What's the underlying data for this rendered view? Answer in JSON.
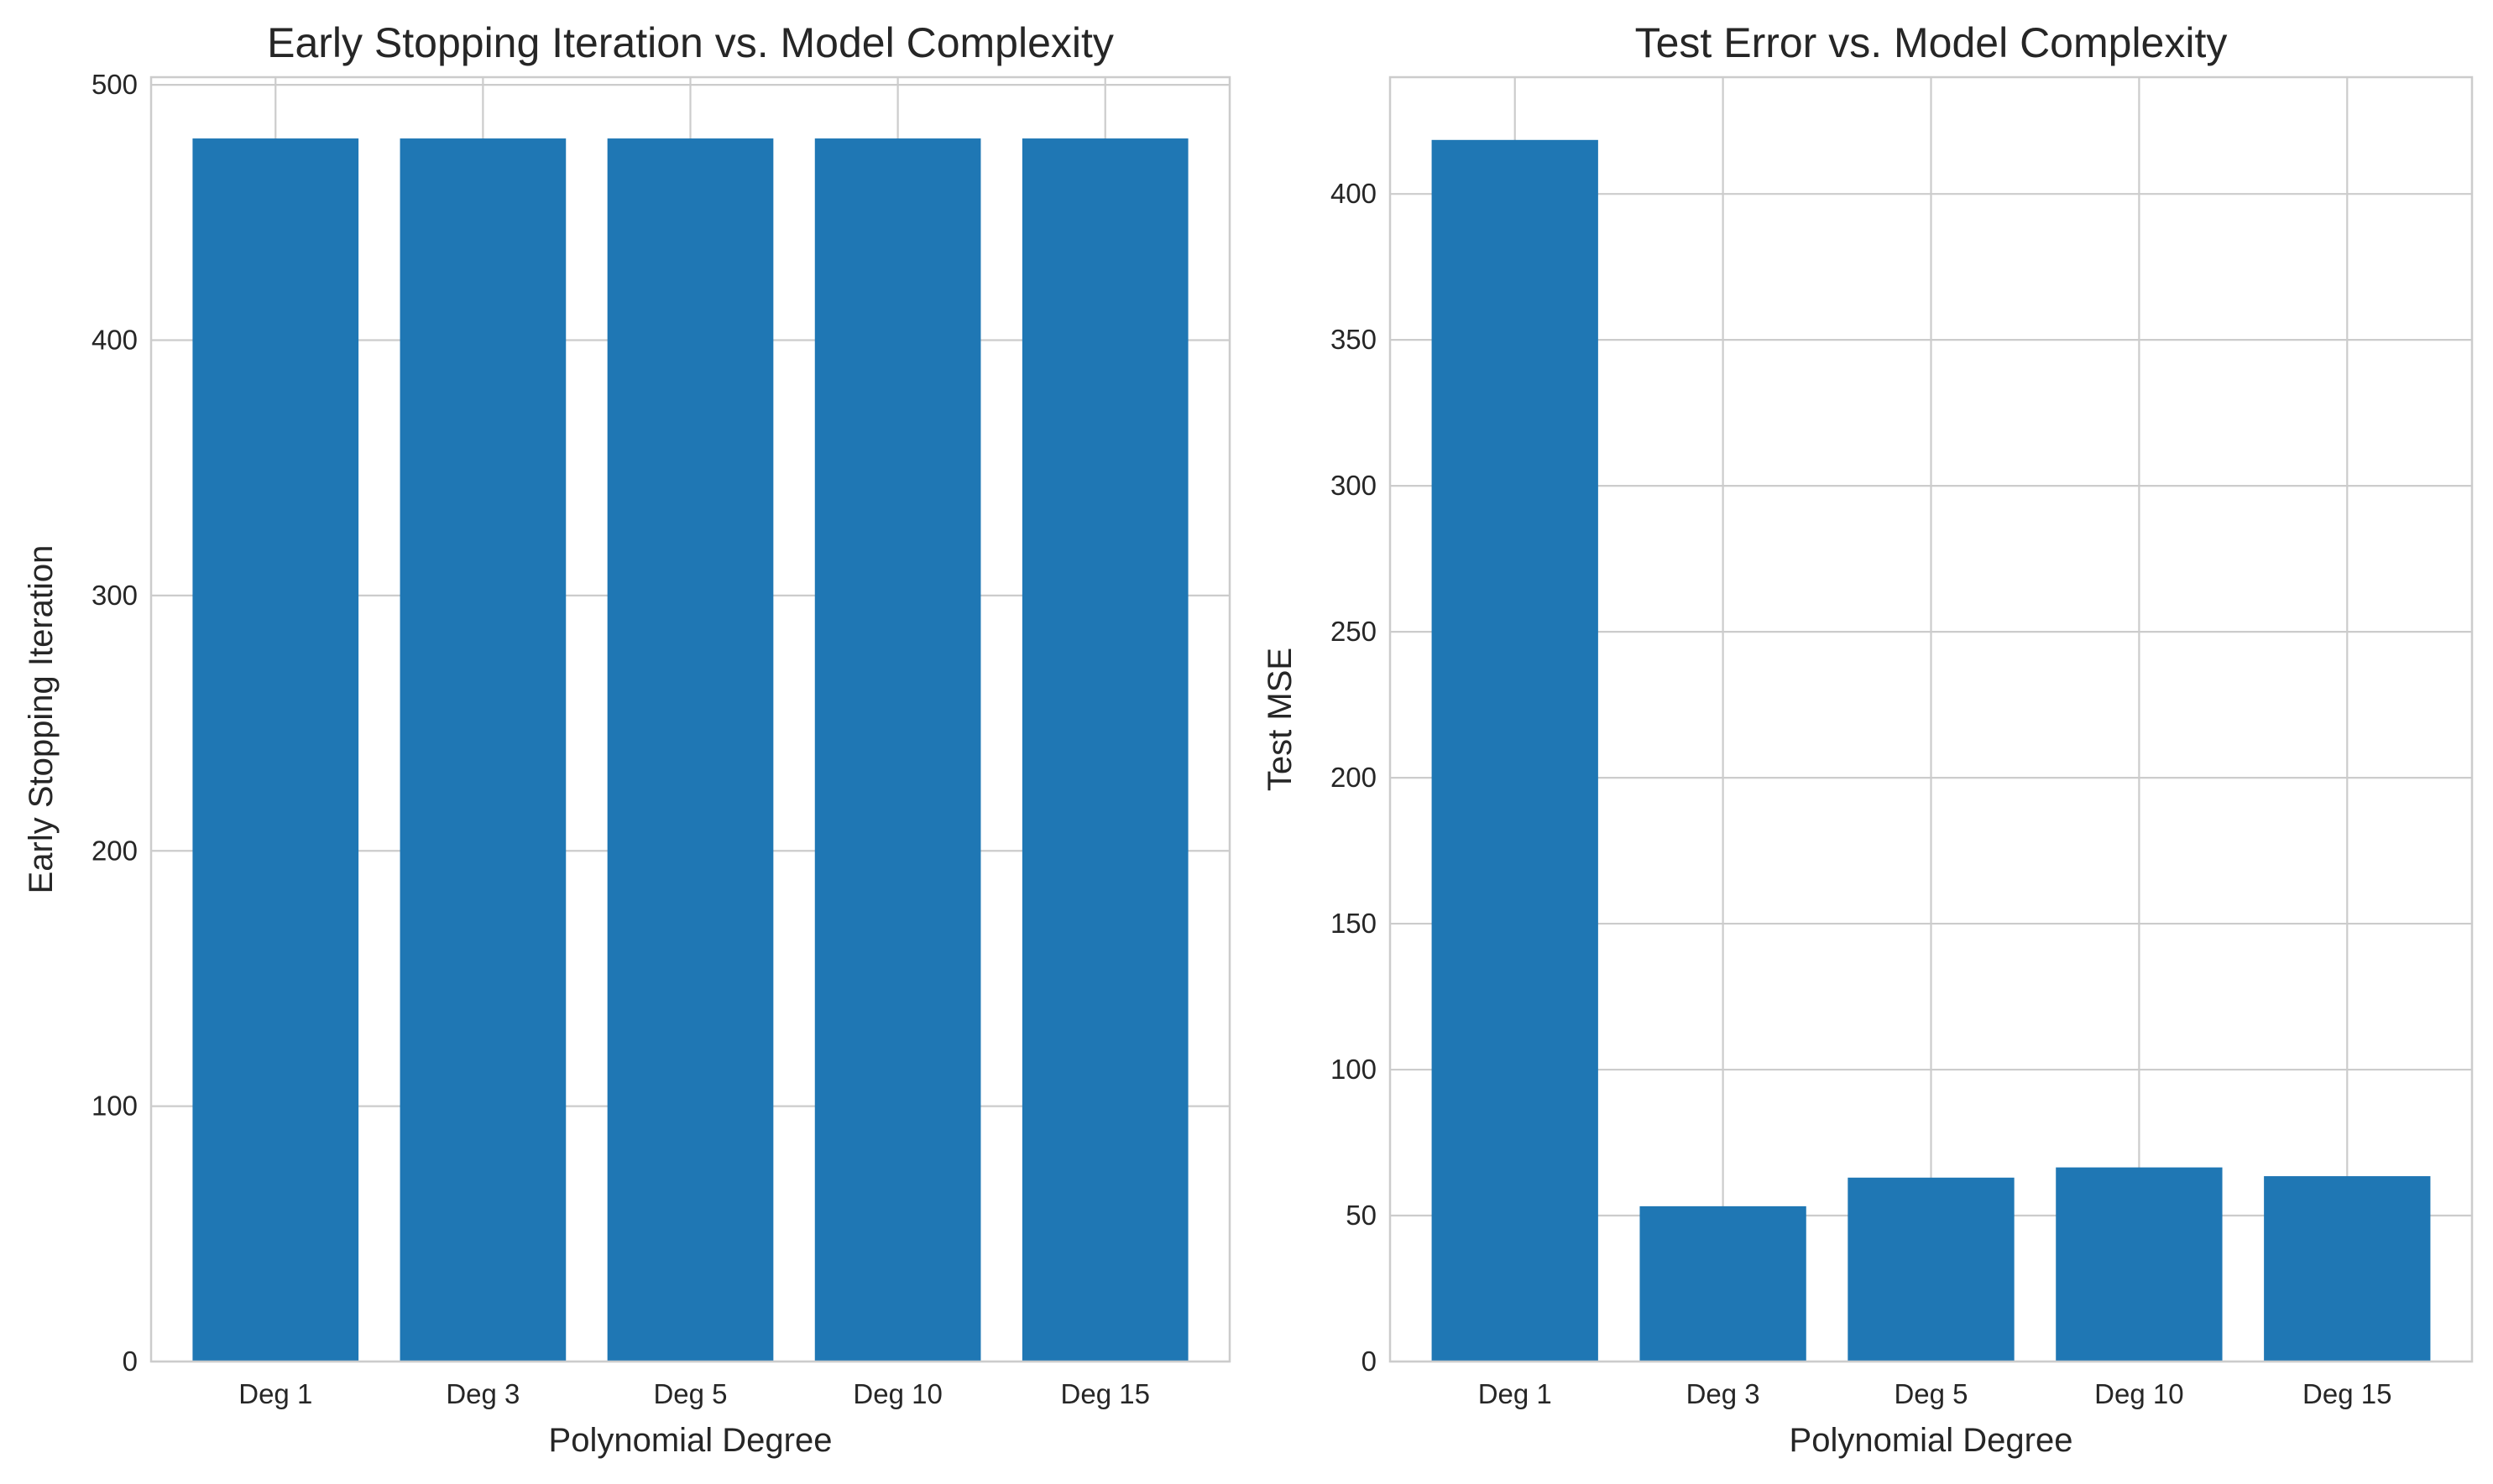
{
  "chart_data": [
    {
      "type": "bar",
      "title": "Early Stopping Iteration vs. Model Complexity",
      "xlabel": "Polynomial Degree",
      "ylabel": "Early Stopping Iteration",
      "categories": [
        "Deg 1",
        "Deg 3",
        "Deg 5",
        "Deg 10",
        "Deg 15"
      ],
      "values": [
        479,
        479,
        479,
        479,
        479
      ],
      "ylim": [
        0,
        503
      ],
      "yticks": [
        0,
        100,
        200,
        300,
        400,
        500
      ],
      "grid": true,
      "bar_color": "#1f77b4"
    },
    {
      "type": "bar",
      "title": "Test Error vs. Model Complexity",
      "xlabel": "Polynomial Degree",
      "ylabel": "Test MSE",
      "categories": [
        "Deg 1",
        "Deg 3",
        "Deg 5",
        "Deg 10",
        "Deg 15"
      ],
      "values": [
        418.5,
        53.2,
        63.0,
        66.5,
        63.5
      ],
      "ylim": [
        0,
        440
      ],
      "yticks": [
        0,
        50,
        100,
        150,
        200,
        250,
        300,
        350,
        400
      ],
      "grid": true,
      "bar_color": "#1f77b4"
    }
  ]
}
